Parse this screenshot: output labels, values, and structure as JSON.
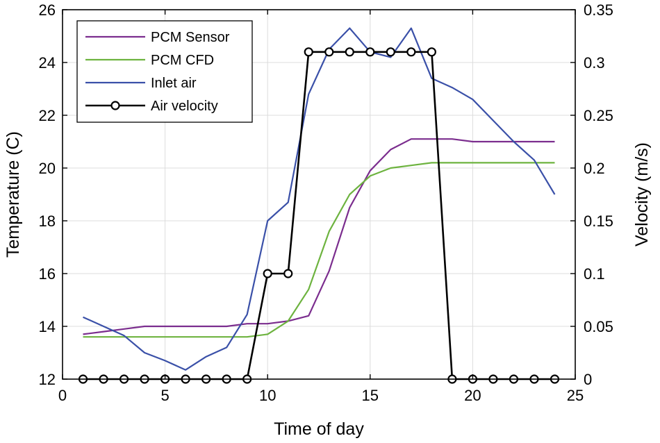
{
  "chart_data": {
    "type": "line",
    "xlabel": "Time of day",
    "ylabel_left": "Temperature (C)",
    "ylabel_right": "Velocity (m/s)",
    "xlim": [
      0,
      25
    ],
    "ylim_left": [
      12,
      26
    ],
    "ylim_right": [
      0,
      0.35
    ],
    "x_ticks": [
      "0",
      "5",
      "10",
      "15",
      "20",
      "25"
    ],
    "y_ticks_left": [
      "12",
      "14",
      "16",
      "18",
      "20",
      "22",
      "24",
      "26"
    ],
    "y_ticks_right": [
      "0",
      "0.05",
      "0.1",
      "0.15",
      "0.2",
      "0.25",
      "0.3",
      "0.35"
    ],
    "grid": true,
    "legend_position": "top-left",
    "series": [
      {
        "name": "PCM Sensor",
        "axis": "left",
        "color": "#7b2d8e",
        "marker": "none",
        "x": [
          1,
          2,
          3,
          4,
          5,
          6,
          7,
          8,
          9,
          10,
          11,
          12,
          13,
          14,
          15,
          16,
          17,
          18,
          19,
          20,
          21,
          22,
          23,
          24
        ],
        "values": [
          13.7,
          13.8,
          13.9,
          14.0,
          14.0,
          14.0,
          14.0,
          14.0,
          14.1,
          14.1,
          14.2,
          14.4,
          16.1,
          18.5,
          19.9,
          20.7,
          21.1,
          21.1,
          21.1,
          21.0,
          21.0,
          21.0,
          21.0,
          21.0
        ]
      },
      {
        "name": "PCM CFD",
        "axis": "left",
        "color": "#6db33f",
        "marker": "none",
        "x": [
          1,
          2,
          3,
          4,
          5,
          6,
          7,
          8,
          9,
          10,
          11,
          12,
          13,
          14,
          15,
          16,
          17,
          18,
          19,
          20,
          21,
          22,
          23,
          24
        ],
        "values": [
          13.6,
          13.6,
          13.6,
          13.6,
          13.6,
          13.6,
          13.6,
          13.6,
          13.6,
          13.7,
          14.2,
          15.4,
          17.6,
          19.0,
          19.7,
          20.0,
          20.1,
          20.2,
          20.2,
          20.2,
          20.2,
          20.2,
          20.2,
          20.2
        ]
      },
      {
        "name": "Inlet air",
        "axis": "left",
        "color": "#3a50a8",
        "marker": "none",
        "x": [
          1,
          2,
          3,
          4,
          5,
          6,
          7,
          8,
          9,
          10,
          11,
          12,
          13,
          14,
          15,
          16,
          17,
          18,
          19,
          20,
          21,
          22,
          23,
          24
        ],
        "values": [
          14.35,
          14.0,
          13.65,
          13.0,
          12.7,
          12.35,
          12.85,
          13.2,
          14.45,
          18.0,
          18.7,
          22.8,
          24.5,
          25.3,
          24.4,
          24.2,
          25.3,
          23.4,
          23.05,
          22.6,
          21.8,
          21.0,
          20.3,
          19.0
        ]
      },
      {
        "name": "Air velocity",
        "axis": "right",
        "color": "#000000",
        "marker": "circle",
        "x": [
          1,
          2,
          3,
          4,
          5,
          6,
          7,
          8,
          9,
          10,
          11,
          12,
          13,
          14,
          15,
          16,
          17,
          18,
          19,
          20,
          21,
          22,
          23,
          24
        ],
        "values": [
          0,
          0,
          0,
          0,
          0,
          0,
          0,
          0,
          0,
          0.1,
          0.1,
          0.31,
          0.31,
          0.31,
          0.31,
          0.31,
          0.31,
          0.31,
          0,
          0,
          0,
          0,
          0,
          0
        ]
      }
    ]
  }
}
